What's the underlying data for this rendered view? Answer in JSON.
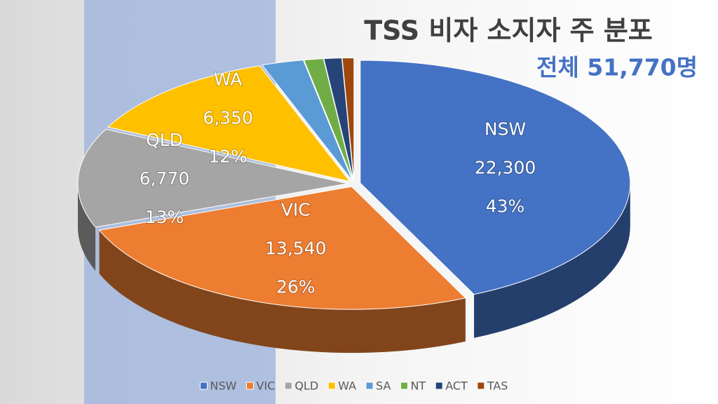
{
  "chart_data": {
    "type": "pie3d",
    "title": "TSS 비자 소지자 주 분포",
    "subtitle": "전체 51,770명",
    "categories": [
      "NSW",
      "VIC",
      "QLD",
      "WA",
      "SA",
      "NT",
      "ACT",
      "TAS"
    ],
    "values": [
      22300,
      13540,
      6770,
      6350,
      1300,
      600,
      550,
      360
    ],
    "value_labels": [
      "22,300",
      "13,540",
      "6,770",
      "6,350",
      null,
      null,
      null,
      null
    ],
    "percent_labels": [
      "43%",
      "26%",
      "13%",
      "12%",
      null,
      null,
      null,
      null
    ],
    "colors": [
      "#4472c4",
      "#ed7d31",
      "#a5a5a5",
      "#ffc000",
      "#5b9bd5",
      "#70ad47",
      "#264478",
      "#9e480e"
    ],
    "legend": "bottom"
  }
}
